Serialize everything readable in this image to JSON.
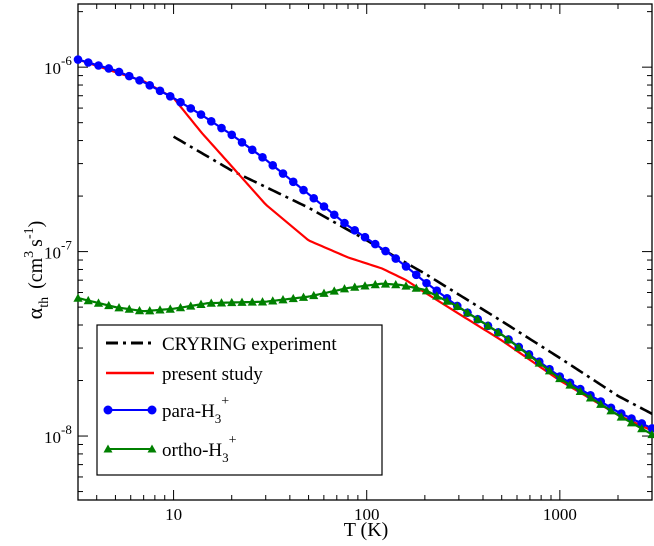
{
  "chart_data": {
    "type": "line",
    "x_scale": "log",
    "y_scale": "log",
    "xlim": [
      3.2,
      3000
    ],
    "ylim": [
      4.5e-09,
      2.2e-06
    ],
    "xlabel": "T (K)",
    "ylabel": {
      "symbol": "α",
      "subscript": "th",
      "units_open": "(cm",
      "units_sup": "3",
      "units_mid": "s",
      "units_sup2": "-1",
      "units_close": ")"
    },
    "x_ticks": [
      {
        "value": 10,
        "label": "10"
      },
      {
        "value": 100,
        "label": "100"
      },
      {
        "value": 1000,
        "label": "1000"
      }
    ],
    "y_ticks": [
      {
        "value": 1e-08,
        "base": "10",
        "exp": "-8"
      },
      {
        "value": 1e-07,
        "base": "10",
        "exp": "-7"
      },
      {
        "value": 1e-06,
        "base": "10",
        "exp": "-6"
      }
    ],
    "series": [
      {
        "name": "CRYRING experiment",
        "legend_text": "CRYRING experiment",
        "color": "#000000",
        "line_style": "dashdot",
        "marker": "none",
        "x": [
          10,
          20,
          50,
          100,
          200,
          500,
          1000,
          2000,
          3000
        ],
        "y": [
          4.2e-07,
          2.75e-07,
          1.73e-07,
          1.15e-07,
          7.6e-08,
          4.2e-08,
          2.65e-08,
          1.65e-08,
          1.32e-08
        ]
      },
      {
        "name": "present study",
        "legend_text": "present study",
        "color": "#ff0000",
        "line_style": "solid",
        "marker": "none",
        "x": [
          3.2,
          5,
          7,
          10,
          14,
          20,
          30,
          50,
          80,
          120,
          160,
          200,
          300,
          500,
          1000,
          2000,
          3000
        ],
        "y": [
          1.1e-06,
          9.4e-07,
          8.4e-07,
          6.8e-07,
          4.4e-07,
          2.9e-07,
          1.8e-07,
          1.15e-07,
          9.3e-08,
          8.1e-08,
          7e-08,
          6e-08,
          4.6e-08,
          3.3e-08,
          2e-08,
          1.3e-08,
          1.07e-08
        ]
      },
      {
        "name": "para-H3+",
        "legend_text": "para-H",
        "legend_sub": "3",
        "legend_sup": "+",
        "color": "#0000ff",
        "marker_color": "#0000ff",
        "line_style": "solid",
        "marker": "circle",
        "x": [
          3.2,
          5,
          7,
          10,
          14,
          20,
          30,
          50,
          80,
          100,
          130,
          160,
          200,
          300,
          500,
          1000,
          2000,
          3000
        ],
        "y": [
          1.1e-06,
          9.6e-07,
          8.3e-07,
          6.8e-07,
          5.5e-07,
          4.3e-07,
          3.15e-07,
          2.05e-07,
          1.38e-07,
          1.18e-07,
          9.8e-08,
          8.3e-08,
          6.85e-08,
          5e-08,
          3.55e-08,
          2.1e-08,
          1.35e-08,
          1.1e-08
        ]
      },
      {
        "name": "ortho-H3+",
        "legend_text": "ortho-H",
        "legend_sub": "3",
        "legend_sup": "+",
        "color": "#008000",
        "marker_color": "#008000",
        "line_style": "solid",
        "marker": "triangle",
        "x": [
          3.2,
          5,
          7,
          10,
          15,
          20,
          30,
          50,
          80,
          120,
          150,
          200,
          300,
          500,
          1000,
          2000,
          3000
        ],
        "y": [
          5.6e-08,
          5e-08,
          4.75e-08,
          4.9e-08,
          5.25e-08,
          5.3e-08,
          5.35e-08,
          5.7e-08,
          6.35e-08,
          6.7e-08,
          6.6e-08,
          6.2e-08,
          5e-08,
          3.55e-08,
          2.05e-08,
          1.3e-08,
          1.02e-08
        ]
      }
    ],
    "legend_position": "bottom-left"
  }
}
